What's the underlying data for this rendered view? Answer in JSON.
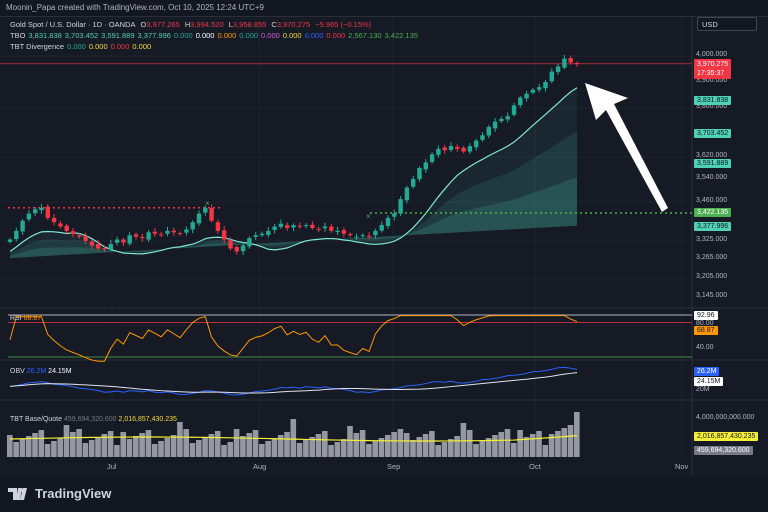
{
  "header": {
    "credit": "Moonin_Papa created with TradingView.com, Oct 10, 2025 12:24 UTC+9"
  },
  "symbol": {
    "name": "Gold Spot / U.S. Dollar · 1D · OANDA",
    "o_label": "O",
    "o": "3,977.265",
    "h_label": "H",
    "h": "3,994.520",
    "l_label": "L",
    "l": "3,958.855",
    "c_label": "C",
    "c": "3,970.275",
    "change": "−5.965 (−0.15%)"
  },
  "tbo": {
    "label": "TBO",
    "values": [
      {
        "v": "3,831.838",
        "color": "#4fd1b5"
      },
      {
        "v": "3,703.452",
        "color": "#4fd1b5"
      },
      {
        "v": "3,591.889",
        "color": "#4fd1b5"
      },
      {
        "v": "3,377.996",
        "color": "#4fd1b5"
      },
      {
        "v": "0.000",
        "color": "#22ab94"
      },
      {
        "v": "0.000",
        "color": "#ffffff"
      },
      {
        "v": "0.000",
        "color": "#ff9800"
      },
      {
        "v": "0.000",
        "color": "#22ab94"
      },
      {
        "v": "0.000",
        "color": "#d05ce3"
      },
      {
        "v": "0.000",
        "color": "#f7d93b"
      },
      {
        "v": "0.000",
        "color": "#2962ff"
      },
      {
        "v": "0.000",
        "color": "#f23645"
      },
      {
        "v": "2,567.130",
        "color": "#4caf50"
      },
      {
        "v": "3,422.135",
        "color": "#4caf50"
      }
    ]
  },
  "divergence": {
    "label": "TBT Divergence",
    "values": [
      {
        "v": "0.000",
        "color": "#22ab94"
      },
      {
        "v": "0.000",
        "color": "#f7d93b"
      },
      {
        "v": "0.000",
        "color": "#f23645"
      },
      {
        "v": "0.000",
        "color": "#f7d93b"
      }
    ]
  },
  "currency": "USD",
  "price_axis": {
    "ticks": [
      4000,
      3900,
      3800,
      3620,
      3540,
      3460,
      3325,
      3265,
      3205,
      3145
    ],
    "tick_labels": [
      "4,000.000",
      "3,900.000",
      "3,800.000",
      "3,620.000",
      "3,540.000",
      "3,460.000",
      "3,325.000",
      "3,265.000",
      "3,205.000",
      "3,145.000"
    ]
  },
  "price_tags": {
    "last": "3,970.275",
    "countdown": "17:35:37",
    "t1": "3,831.838",
    "t2": "3,703.452",
    "t3": "3,591.889",
    "t4": "3,422.135",
    "t5": "3,377.996"
  },
  "closes": [
    3330,
    3360,
    3395,
    3420,
    3435,
    3440,
    3405,
    3390,
    3375,
    3360,
    3350,
    3340,
    3325,
    3310,
    3300,
    3300,
    3315,
    3330,
    3320,
    3345,
    3340,
    3335,
    3355,
    3350,
    3345,
    3360,
    3355,
    3350,
    3365,
    3390,
    3420,
    3440,
    3395,
    3360,
    3330,
    3300,
    3290,
    3310,
    3335,
    3345,
    3350,
    3360,
    3375,
    3385,
    3370,
    3380,
    3375,
    3380,
    3370,
    3365,
    3375,
    3360,
    3360,
    3350,
    3345,
    3340,
    3345,
    3340,
    3360,
    3380,
    3405,
    3420,
    3470,
    3510,
    3540,
    3580,
    3600,
    3630,
    3650,
    3645,
    3660,
    3650,
    3640,
    3660,
    3680,
    3700,
    3730,
    3750,
    3760,
    3770,
    3810,
    3840,
    3855,
    3870,
    3880,
    3900,
    3940,
    3960,
    3990,
    3975,
    3970
  ],
  "colors": {
    "up": "#22ab94",
    "down": "#f23645",
    "band": "#4fd1b5"
  },
  "rsi": {
    "label": "RSI",
    "value": "68.87",
    "tag_upper": "92.96",
    "tick80": "80.00",
    "tick40": "40.00"
  },
  "obv": {
    "label": "OBV",
    "value1": "26.2M",
    "value2": "24.15M",
    "tick": "20M"
  },
  "tbt": {
    "label": "TBT Base/Quote",
    "value1": "459,694,320.600",
    "value2": "2,016,857,430.235",
    "tick": "4,000,000,000.000"
  },
  "x_axis": [
    "Jul",
    "Aug",
    "Sep",
    "Oct",
    "Nov"
  ],
  "footer": {
    "brand": "TradingView"
  }
}
